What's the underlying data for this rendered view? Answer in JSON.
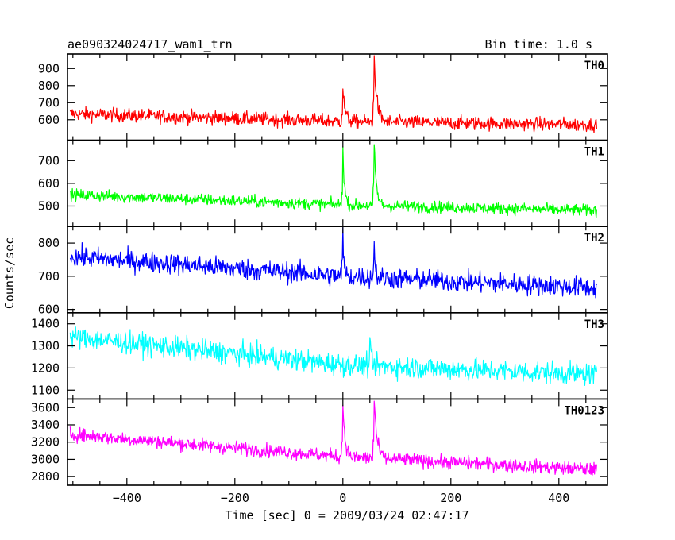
{
  "header": {
    "title": "ae090324024717_wam1_trn",
    "bin_time": "Bin time: 1.0 s"
  },
  "xlabel": "Time [sec] 0 = 2009/03/24 02:47:17",
  "ylabel": "Counts/sec",
  "chart_data": {
    "type": "line",
    "x_range": [
      -505,
      470
    ],
    "xlim": [
      -510,
      490
    ],
    "x_ticks": [
      -400,
      -200,
      0,
      200,
      400
    ],
    "x_tick_labels": [
      "−400",
      "−200",
      "0",
      "200",
      "400"
    ],
    "grid": false,
    "panels": [
      {
        "name": "TH0",
        "color": "#ff0000",
        "ylim": [
          480,
          985
        ],
        "y_ticks": [
          600,
          700,
          800,
          900
        ],
        "y_tick_labels": [
          "600",
          "700",
          "800",
          "900"
        ],
        "baseline": [
          [
            -505,
            635
          ],
          [
            0,
            590
          ],
          [
            470,
            570
          ]
        ],
        "noise": 28,
        "spikes": [
          [
            0,
            190,
            4
          ],
          [
            58,
            375,
            5
          ]
        ]
      },
      {
        "name": "TH1",
        "color": "#00ff00",
        "ylim": [
          410,
          790
        ],
        "y_ticks": [
          500,
          600,
          700
        ],
        "y_tick_labels": [
          "500",
          "600",
          "700"
        ],
        "baseline": [
          [
            -505,
            550
          ],
          [
            0,
            505
          ],
          [
            470,
            480
          ]
        ],
        "noise": 18,
        "spikes": [
          [
            0,
            240,
            3
          ],
          [
            58,
            265,
            4
          ]
        ]
      },
      {
        "name": "TH2",
        "color": "#0000ff",
        "ylim": [
          590,
          850
        ],
        "y_ticks": [
          600,
          700,
          800
        ],
        "y_tick_labels": [
          "600",
          "700",
          "800"
        ],
        "baseline": [
          [
            -505,
            760
          ],
          [
            0,
            700
          ],
          [
            470,
            665
          ]
        ],
        "noise": 22,
        "spikes": [
          [
            0,
            130,
            2
          ],
          [
            58,
            110,
            2
          ]
        ]
      },
      {
        "name": "TH3",
        "color": "#00ffff",
        "ylim": [
          1060,
          1450
        ],
        "y_ticks": [
          1100,
          1200,
          1300,
          1400
        ],
        "y_tick_labels": [
          "1100",
          "1200",
          "1300",
          "1400"
        ],
        "baseline": [
          [
            -505,
            1340
          ],
          [
            0,
            1215
          ],
          [
            470,
            1170
          ]
        ],
        "noise": 35,
        "spikes": [
          [
            50,
            110,
            2
          ]
        ]
      },
      {
        "name": "TH0123",
        "color": "#ff00ff",
        "ylim": [
          2700,
          3700
        ],
        "y_ticks": [
          2800,
          3000,
          3200,
          3400,
          3600
        ],
        "y_tick_labels": [
          "2800",
          "3000",
          "3200",
          "3400",
          "3600"
        ],
        "baseline": [
          [
            -505,
            3290
          ],
          [
            0,
            3030
          ],
          [
            470,
            2880
          ]
        ],
        "noise": 55,
        "spikes": [
          [
            0,
            620,
            4
          ],
          [
            58,
            680,
            5
          ]
        ]
      }
    ]
  }
}
